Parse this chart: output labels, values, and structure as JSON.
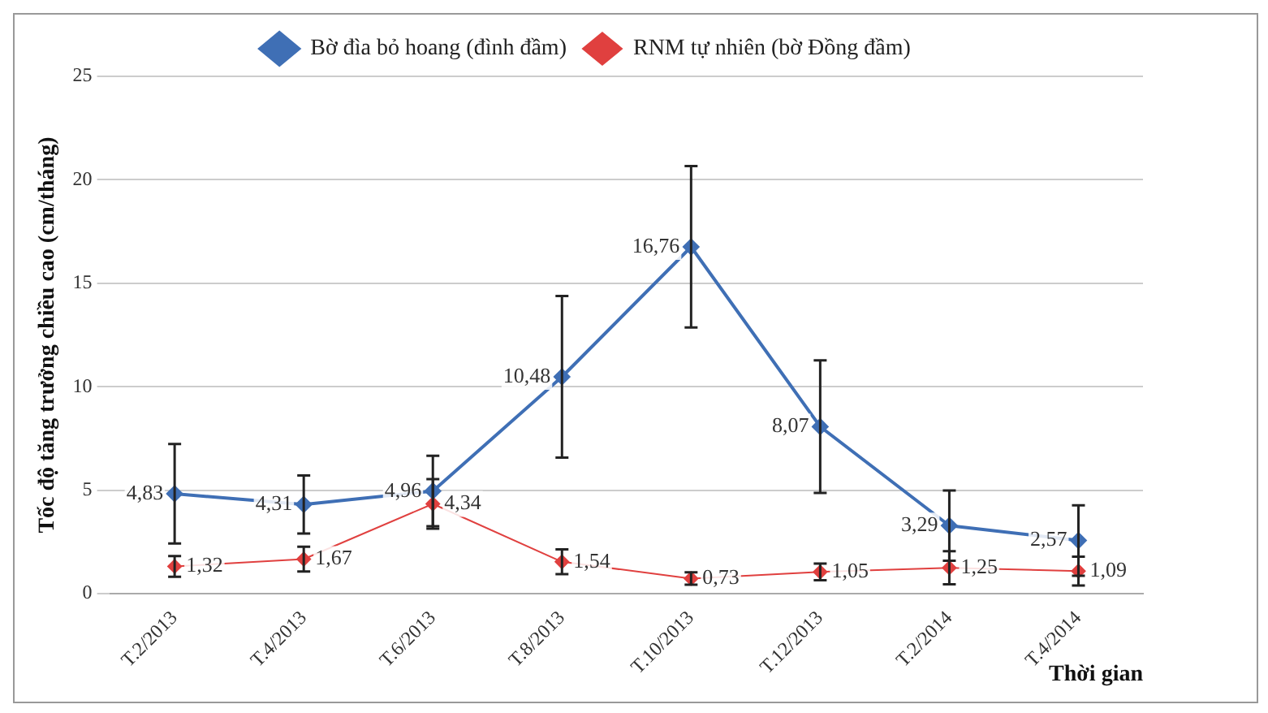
{
  "chart_data": {
    "type": "line",
    "ylabel": "Tốc độ tăng trưởng chiều cao (cm/tháng)",
    "xlabel": "Thời gian",
    "categories": [
      "T.2/2013",
      "T.4/2013",
      "T.6/2013",
      "T.8/2013",
      "T.10/2013",
      "T.12/2013",
      "T.2/2014",
      "T.4/2014"
    ],
    "series": [
      {
        "name": "Bờ đìa bỏ hoang (đình đầm)",
        "color": "#3f6fb5",
        "values": [
          4.83,
          4.31,
          4.96,
          10.48,
          16.76,
          8.07,
          3.29,
          2.57
        ],
        "errors": [
          2.4,
          1.4,
          1.7,
          3.9,
          3.9,
          3.2,
          1.7,
          1.7
        ],
        "value_labels": [
          "4,83",
          "4,31",
          "4,96",
          "10,48",
          "16,76",
          "8,07",
          "3,29",
          "2,57"
        ]
      },
      {
        "name": "RNM tự nhiên (bờ Đồng đầm)",
        "color": "#e0403f",
        "values": [
          1.32,
          1.67,
          4.34,
          1.54,
          0.73,
          1.05,
          1.25,
          1.09
        ],
        "errors": [
          0.5,
          0.6,
          1.2,
          0.6,
          0.3,
          0.4,
          0.8,
          0.7
        ],
        "value_labels": [
          "1,32",
          "1,67",
          "4,34",
          "1,54",
          "0,73",
          "1,05",
          "1,25",
          "1,09"
        ]
      }
    ],
    "ylim": [
      0,
      25
    ],
    "yticks": [
      0,
      5,
      10,
      15,
      20,
      25
    ],
    "grid": "y",
    "legend": "top",
    "marker": "diamond",
    "line_style": "solid"
  }
}
